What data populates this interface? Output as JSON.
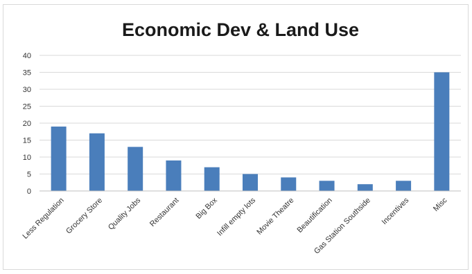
{
  "chart_data": {
    "type": "bar",
    "title": "Economic Dev & Land Use",
    "categories": [
      "Less Regulation",
      "Grocery Store",
      "Quality Jobs",
      "Restaurant",
      "Big Box",
      "Infill empty lots",
      "Movie Theatre",
      "Beautification",
      "Gas Station Southside",
      "Incentives",
      "Misc"
    ],
    "values": [
      19,
      17,
      13,
      9,
      7,
      5,
      4,
      3,
      2,
      3,
      35
    ],
    "ylim": [
      0,
      40
    ],
    "yticks": [
      "0",
      "5",
      "10",
      "15",
      "20",
      "25",
      "30",
      "35",
      "40"
    ],
    "grid": true,
    "bar_color": "#4a7ebb"
  }
}
